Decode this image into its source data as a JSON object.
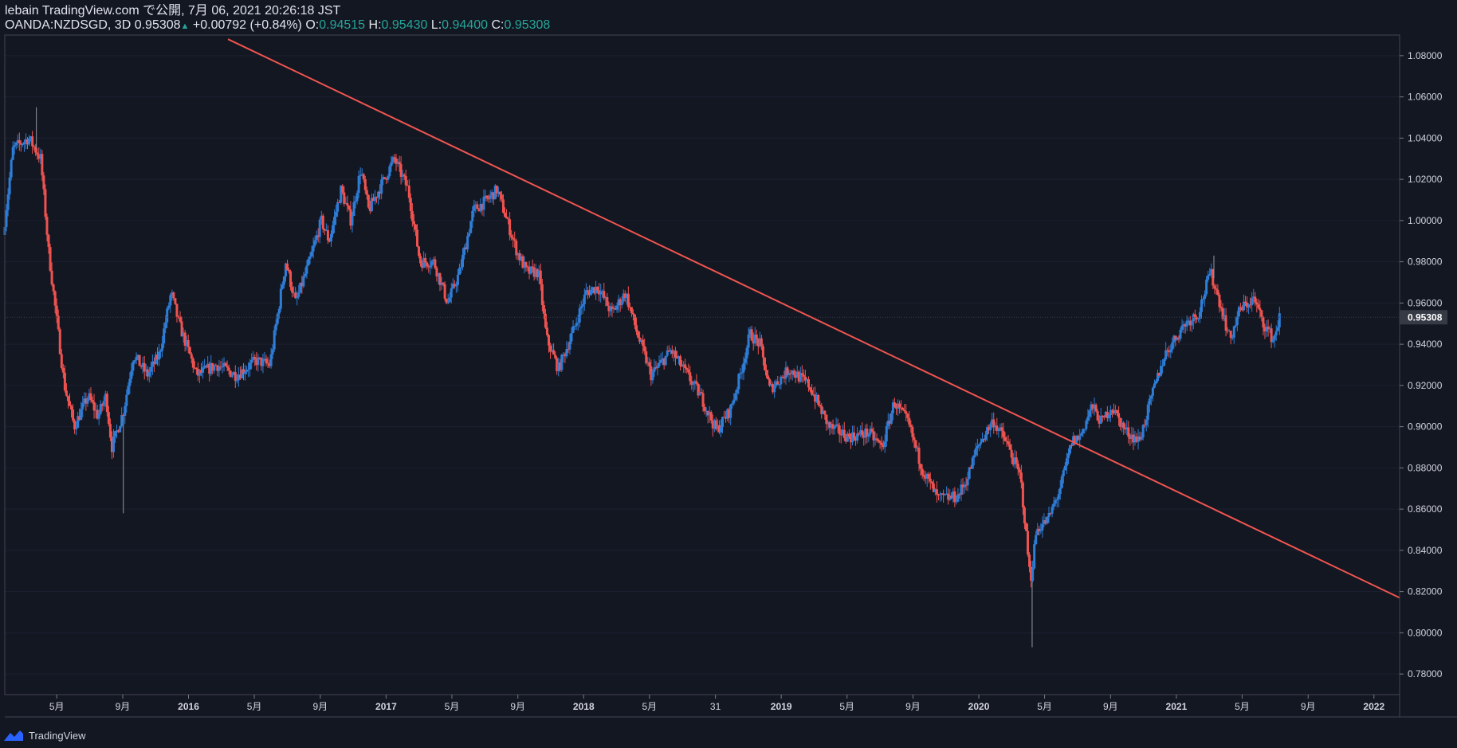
{
  "header": {
    "published": "lebain TradingView.com で公開, 7月 06, 2021 20:26:18 JST",
    "symbol": "OANDA:NZDSGD, 3D",
    "last": "0.95308",
    "change": "+0.00792 (+0.84%)",
    "o_label": "O:",
    "o_value": "0.94515",
    "h_label": "H:",
    "h_value": "0.95430",
    "l_label": "L:",
    "l_value": "0.94400",
    "c_label": "C:",
    "c_value": "0.95308"
  },
  "footer": {
    "brand": "TradingView"
  },
  "colors": {
    "up": "#2e7dd7",
    "down": "#ef5350",
    "trendline": "#f05550",
    "bg": "#131722",
    "axis": "#d1d4dc"
  },
  "chart_data": {
    "type": "candlestick",
    "title": "OANDA:NZDSGD, 3D",
    "ylim": [
      0.77,
      1.09
    ],
    "y_ticks": [
      "1.08000",
      "1.06000",
      "1.04000",
      "1.02000",
      "1.00000",
      "0.98000",
      "0.96000",
      "0.94000",
      "0.92000",
      "0.90000",
      "0.88000",
      "0.86000",
      "0.84000",
      "0.82000",
      "0.80000",
      "0.78000"
    ],
    "current_price": "0.95308",
    "x_ticks": [
      "5月",
      "9月",
      "2016",
      "5月",
      "9月",
      "2017",
      "5月",
      "9月",
      "2018",
      "5月",
      "31",
      "2019",
      "5月",
      "9月",
      "2020",
      "5月",
      "9月",
      "2021",
      "5月",
      "9月",
      "2022"
    ],
    "x_tick_positions": [
      2015.333,
      2015.667,
      2016.0,
      2016.333,
      2016.667,
      2017.0,
      2017.333,
      2017.667,
      2018.0,
      2018.333,
      2018.667,
      2019.0,
      2019.333,
      2019.667,
      2020.0,
      2020.333,
      2020.667,
      2021.0,
      2021.333,
      2021.667,
      2022.0
    ],
    "xlim": [
      2015.07,
      2022.13
    ],
    "series_path": [
      [
        2015.07,
        0.993
      ],
      [
        2015.12,
        1.035
      ],
      [
        2015.2,
        1.04
      ],
      [
        2015.26,
        1.03
      ],
      [
        2015.3,
        0.985
      ],
      [
        2015.38,
        0.92
      ],
      [
        2015.43,
        0.9
      ],
      [
        2015.5,
        0.915
      ],
      [
        2015.55,
        0.905
      ],
      [
        2015.59,
        0.915
      ],
      [
        2015.62,
        0.89
      ],
      [
        2015.68,
        0.908
      ],
      [
        2015.73,
        0.935
      ],
      [
        2015.8,
        0.925
      ],
      [
        2015.86,
        0.935
      ],
      [
        2015.92,
        0.965
      ],
      [
        2015.96,
        0.95
      ],
      [
        2016.05,
        0.925
      ],
      [
        2016.15,
        0.93
      ],
      [
        2016.25,
        0.925
      ],
      [
        2016.35,
        0.932
      ],
      [
        2016.42,
        0.93
      ],
      [
        2016.5,
        0.98
      ],
      [
        2016.55,
        0.96
      ],
      [
        2016.62,
        0.98
      ],
      [
        2016.68,
        1.0
      ],
      [
        2016.72,
        0.99
      ],
      [
        2016.78,
        1.015
      ],
      [
        2016.83,
        1.0
      ],
      [
        2016.88,
        1.025
      ],
      [
        2016.92,
        1.005
      ],
      [
        2017.05,
        1.03
      ],
      [
        2017.12,
        1.015
      ],
      [
        2017.18,
        0.98
      ],
      [
        2017.25,
        0.98
      ],
      [
        2017.32,
        0.96
      ],
      [
        2017.38,
        0.975
      ],
      [
        2017.45,
        1.005
      ],
      [
        2017.52,
        1.01
      ],
      [
        2017.57,
        1.015
      ],
      [
        2017.62,
        1.0
      ],
      [
        2017.67,
        0.985
      ],
      [
        2017.72,
        0.975
      ],
      [
        2017.78,
        0.975
      ],
      [
        2017.82,
        0.943
      ],
      [
        2017.88,
        0.928
      ],
      [
        2017.95,
        0.945
      ],
      [
        2018.02,
        0.965
      ],
      [
        2018.08,
        0.968
      ],
      [
        2018.15,
        0.955
      ],
      [
        2018.22,
        0.965
      ],
      [
        2018.28,
        0.945
      ],
      [
        2018.35,
        0.925
      ],
      [
        2018.45,
        0.937
      ],
      [
        2018.52,
        0.927
      ],
      [
        2018.6,
        0.915
      ],
      [
        2018.68,
        0.898
      ],
      [
        2018.75,
        0.908
      ],
      [
        2018.8,
        0.925
      ],
      [
        2018.85,
        0.945
      ],
      [
        2018.9,
        0.94
      ],
      [
        2018.95,
        0.918
      ],
      [
        2019.05,
        0.928
      ],
      [
        2019.15,
        0.92
      ],
      [
        2019.25,
        0.9
      ],
      [
        2019.35,
        0.895
      ],
      [
        2019.45,
        0.897
      ],
      [
        2019.52,
        0.89
      ],
      [
        2019.58,
        0.912
      ],
      [
        2019.65,
        0.902
      ],
      [
        2019.72,
        0.88
      ],
      [
        2019.8,
        0.865
      ],
      [
        2019.9,
        0.866
      ],
      [
        2019.95,
        0.875
      ],
      [
        2020.0,
        0.89
      ],
      [
        2020.08,
        0.903
      ],
      [
        2020.15,
        0.892
      ],
      [
        2020.22,
        0.875
      ],
      [
        2020.27,
        0.825
      ],
      [
        2020.3,
        0.85
      ],
      [
        2020.36,
        0.855
      ],
      [
        2020.42,
        0.87
      ],
      [
        2020.48,
        0.893
      ],
      [
        2020.52,
        0.895
      ],
      [
        2020.58,
        0.91
      ],
      [
        2020.63,
        0.902
      ],
      [
        2020.68,
        0.91
      ],
      [
        2020.75,
        0.898
      ],
      [
        2020.82,
        0.893
      ],
      [
        2020.9,
        0.92
      ],
      [
        2020.95,
        0.935
      ],
      [
        2021.05,
        0.95
      ],
      [
        2021.12,
        0.955
      ],
      [
        2021.18,
        0.975
      ],
      [
        2021.22,
        0.963
      ],
      [
        2021.28,
        0.942
      ],
      [
        2021.33,
        0.957
      ],
      [
        2021.4,
        0.962
      ],
      [
        2021.45,
        0.95
      ],
      [
        2021.5,
        0.942
      ],
      [
        2021.53,
        0.953
      ]
    ],
    "extreme_wicks": [
      [
        2015.67,
        0.858
      ],
      [
        2020.27,
        0.793
      ],
      [
        2015.23,
        1.055
      ],
      [
        2021.19,
        0.983
      ]
    ],
    "trendline": {
      "start": [
        2016.2,
        1.088
      ],
      "end": [
        2022.13,
        0.817
      ]
    }
  }
}
